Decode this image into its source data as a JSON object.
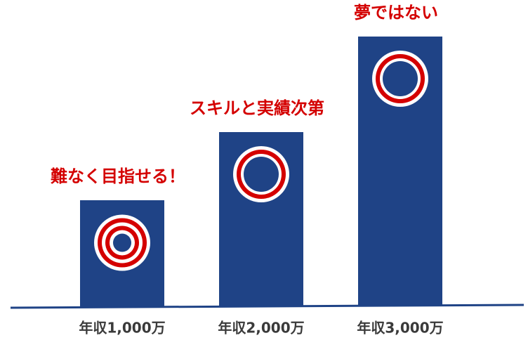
{
  "chart_data": {
    "type": "bar",
    "categories": [
      "年収1,000万",
      "年収2,000万",
      "年収3,000万"
    ],
    "values": [
      151,
      248,
      384
    ],
    "annotations": [
      "難なく目指せる！",
      "スキルと実績次第",
      "夢ではない"
    ],
    "color": "#1f4386",
    "annotation_color": "#d40000",
    "ylim": [
      0,
      400
    ]
  }
}
